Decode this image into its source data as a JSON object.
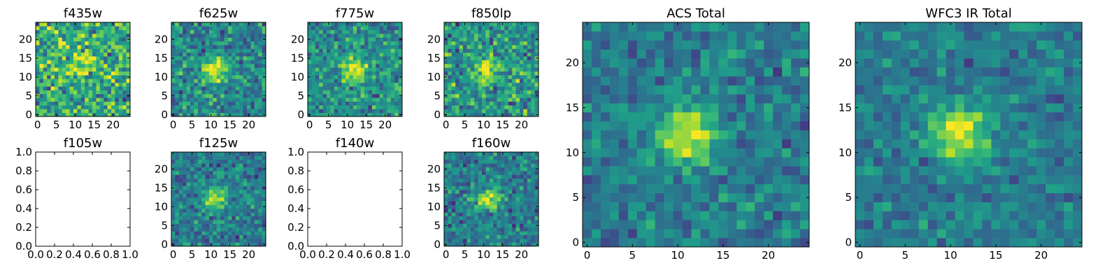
{
  "chart_data": [
    {
      "type": "heatmap",
      "title": "f435w",
      "grid_size": 25,
      "xlim": [
        0,
        25
      ],
      "ylim": [
        0,
        25
      ],
      "xticks": [
        0,
        5,
        10,
        15,
        20
      ],
      "yticks": [
        0,
        5,
        10,
        15,
        20
      ],
      "has_data": true,
      "source_center": [
        11,
        13
      ],
      "source_strength": 0.35,
      "noise_level": 0.35,
      "background": 0.62,
      "seed": 11
    },
    {
      "type": "heatmap",
      "title": "f625w",
      "grid_size": 25,
      "xlim": [
        0,
        25
      ],
      "ylim": [
        0,
        25
      ],
      "xticks": [
        0,
        5,
        10,
        15,
        20
      ],
      "yticks": [
        0,
        5,
        10,
        15,
        20
      ],
      "has_data": true,
      "source_center": [
        11,
        12
      ],
      "source_strength": 0.55,
      "noise_level": 0.28,
      "background": 0.47,
      "seed": 23
    },
    {
      "type": "heatmap",
      "title": "f775w",
      "grid_size": 25,
      "xlim": [
        0,
        25
      ],
      "ylim": [
        0,
        25
      ],
      "xticks": [
        0,
        5,
        10,
        15,
        20
      ],
      "yticks": [
        0,
        5,
        10,
        15,
        20
      ],
      "has_data": true,
      "source_center": [
        12,
        12
      ],
      "source_strength": 0.5,
      "noise_level": 0.26,
      "background": 0.5,
      "seed": 37
    },
    {
      "type": "heatmap",
      "title": "f850lp",
      "grid_size": 25,
      "xlim": [
        0,
        25
      ],
      "ylim": [
        0,
        25
      ],
      "xticks": [
        0,
        5,
        10,
        15,
        20
      ],
      "yticks": [
        0,
        5,
        10,
        15,
        20
      ],
      "has_data": true,
      "source_center": [
        11,
        12
      ],
      "source_strength": 0.45,
      "noise_level": 0.32,
      "background": 0.52,
      "seed": 41
    },
    {
      "type": "heatmap",
      "title": "f105w",
      "xlim": [
        0.0,
        1.0
      ],
      "ylim": [
        0.0,
        1.0
      ],
      "xticks": [
        "0.0",
        "0.2",
        "0.4",
        "0.6",
        "0.8",
        "1.0"
      ],
      "yticks": [
        "0.0",
        "0.2",
        "0.4",
        "0.6",
        "0.8",
        "1.0"
      ],
      "has_data": false
    },
    {
      "type": "heatmap",
      "title": "f125w",
      "grid_size": 25,
      "xlim": [
        0,
        25
      ],
      "ylim": [
        0,
        25
      ],
      "xticks": [
        0,
        5,
        10,
        15,
        20
      ],
      "yticks": [
        0,
        5,
        10,
        15,
        20
      ],
      "has_data": true,
      "source_center": [
        11,
        12
      ],
      "source_strength": 0.45,
      "noise_level": 0.22,
      "background": 0.42,
      "seed": 53
    },
    {
      "type": "heatmap",
      "title": "f140w",
      "xlim": [
        0.0,
        1.0
      ],
      "ylim": [
        0.0,
        1.0
      ],
      "xticks": [
        "0.0",
        "0.2",
        "0.4",
        "0.6",
        "0.8",
        "1.0"
      ],
      "yticks": [
        "0.0",
        "0.2",
        "0.4",
        "0.6",
        "0.8",
        "1.0"
      ],
      "has_data": false
    },
    {
      "type": "heatmap",
      "title": "f160w",
      "grid_size": 25,
      "xlim": [
        0,
        25
      ],
      "ylim": [
        0,
        25
      ],
      "xticks": [
        0,
        5,
        10,
        15,
        20
      ],
      "yticks": [
        0,
        5,
        10,
        15,
        20
      ],
      "has_data": true,
      "source_center": [
        11,
        12
      ],
      "source_strength": 0.5,
      "noise_level": 0.24,
      "background": 0.42,
      "seed": 67
    },
    {
      "type": "heatmap",
      "title": "ACS Total",
      "grid_size": 25,
      "xlim": [
        0,
        25
      ],
      "ylim": [
        0,
        25
      ],
      "xticks": [
        0,
        5,
        10,
        15,
        20
      ],
      "yticks": [
        0,
        5,
        10,
        15,
        20
      ],
      "has_data": true,
      "source_center": [
        11,
        12
      ],
      "source_strength": 0.55,
      "noise_level": 0.2,
      "background": 0.42,
      "seed": 79
    },
    {
      "type": "heatmap",
      "title": "WFC3 IR Total",
      "grid_size": 25,
      "xlim": [
        0,
        25
      ],
      "ylim": [
        0,
        25
      ],
      "xticks": [
        0,
        5,
        10,
        15,
        20
      ],
      "yticks": [
        0,
        5,
        10,
        15,
        20
      ],
      "has_data": true,
      "source_center": [
        11,
        12
      ],
      "source_strength": 0.55,
      "noise_level": 0.17,
      "background": 0.42,
      "seed": 97
    }
  ],
  "colormap": "viridis",
  "colormap_stops": [
    "#440154",
    "#482878",
    "#3e4989",
    "#31688e",
    "#26828e",
    "#1f9e89",
    "#35b779",
    "#6ece58",
    "#b5de2b",
    "#fde725"
  ]
}
